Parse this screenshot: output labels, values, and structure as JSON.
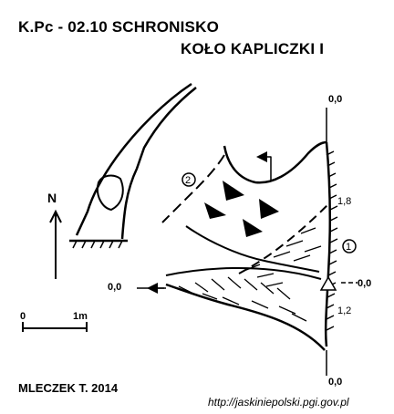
{
  "title": {
    "line1": "K.Pc - 02.10  SCHRONISKO",
    "line2": "KOŁO KAPLICZKI I"
  },
  "north_label": "N",
  "scale": {
    "start": "0",
    "end": "1m"
  },
  "section_markers": {
    "a": "2",
    "b": "1"
  },
  "elevations": {
    "top": "0,0",
    "upper": "1,8",
    "left": "0,0",
    "right": "0,0",
    "lower": "1,2",
    "bottom": "0,0"
  },
  "author": "MLECZEK T. 2014",
  "url": "http://jaskiniepolski.pgi.gov.pl",
  "colors": {
    "ink": "#000000",
    "paper": "#ffffff"
  }
}
